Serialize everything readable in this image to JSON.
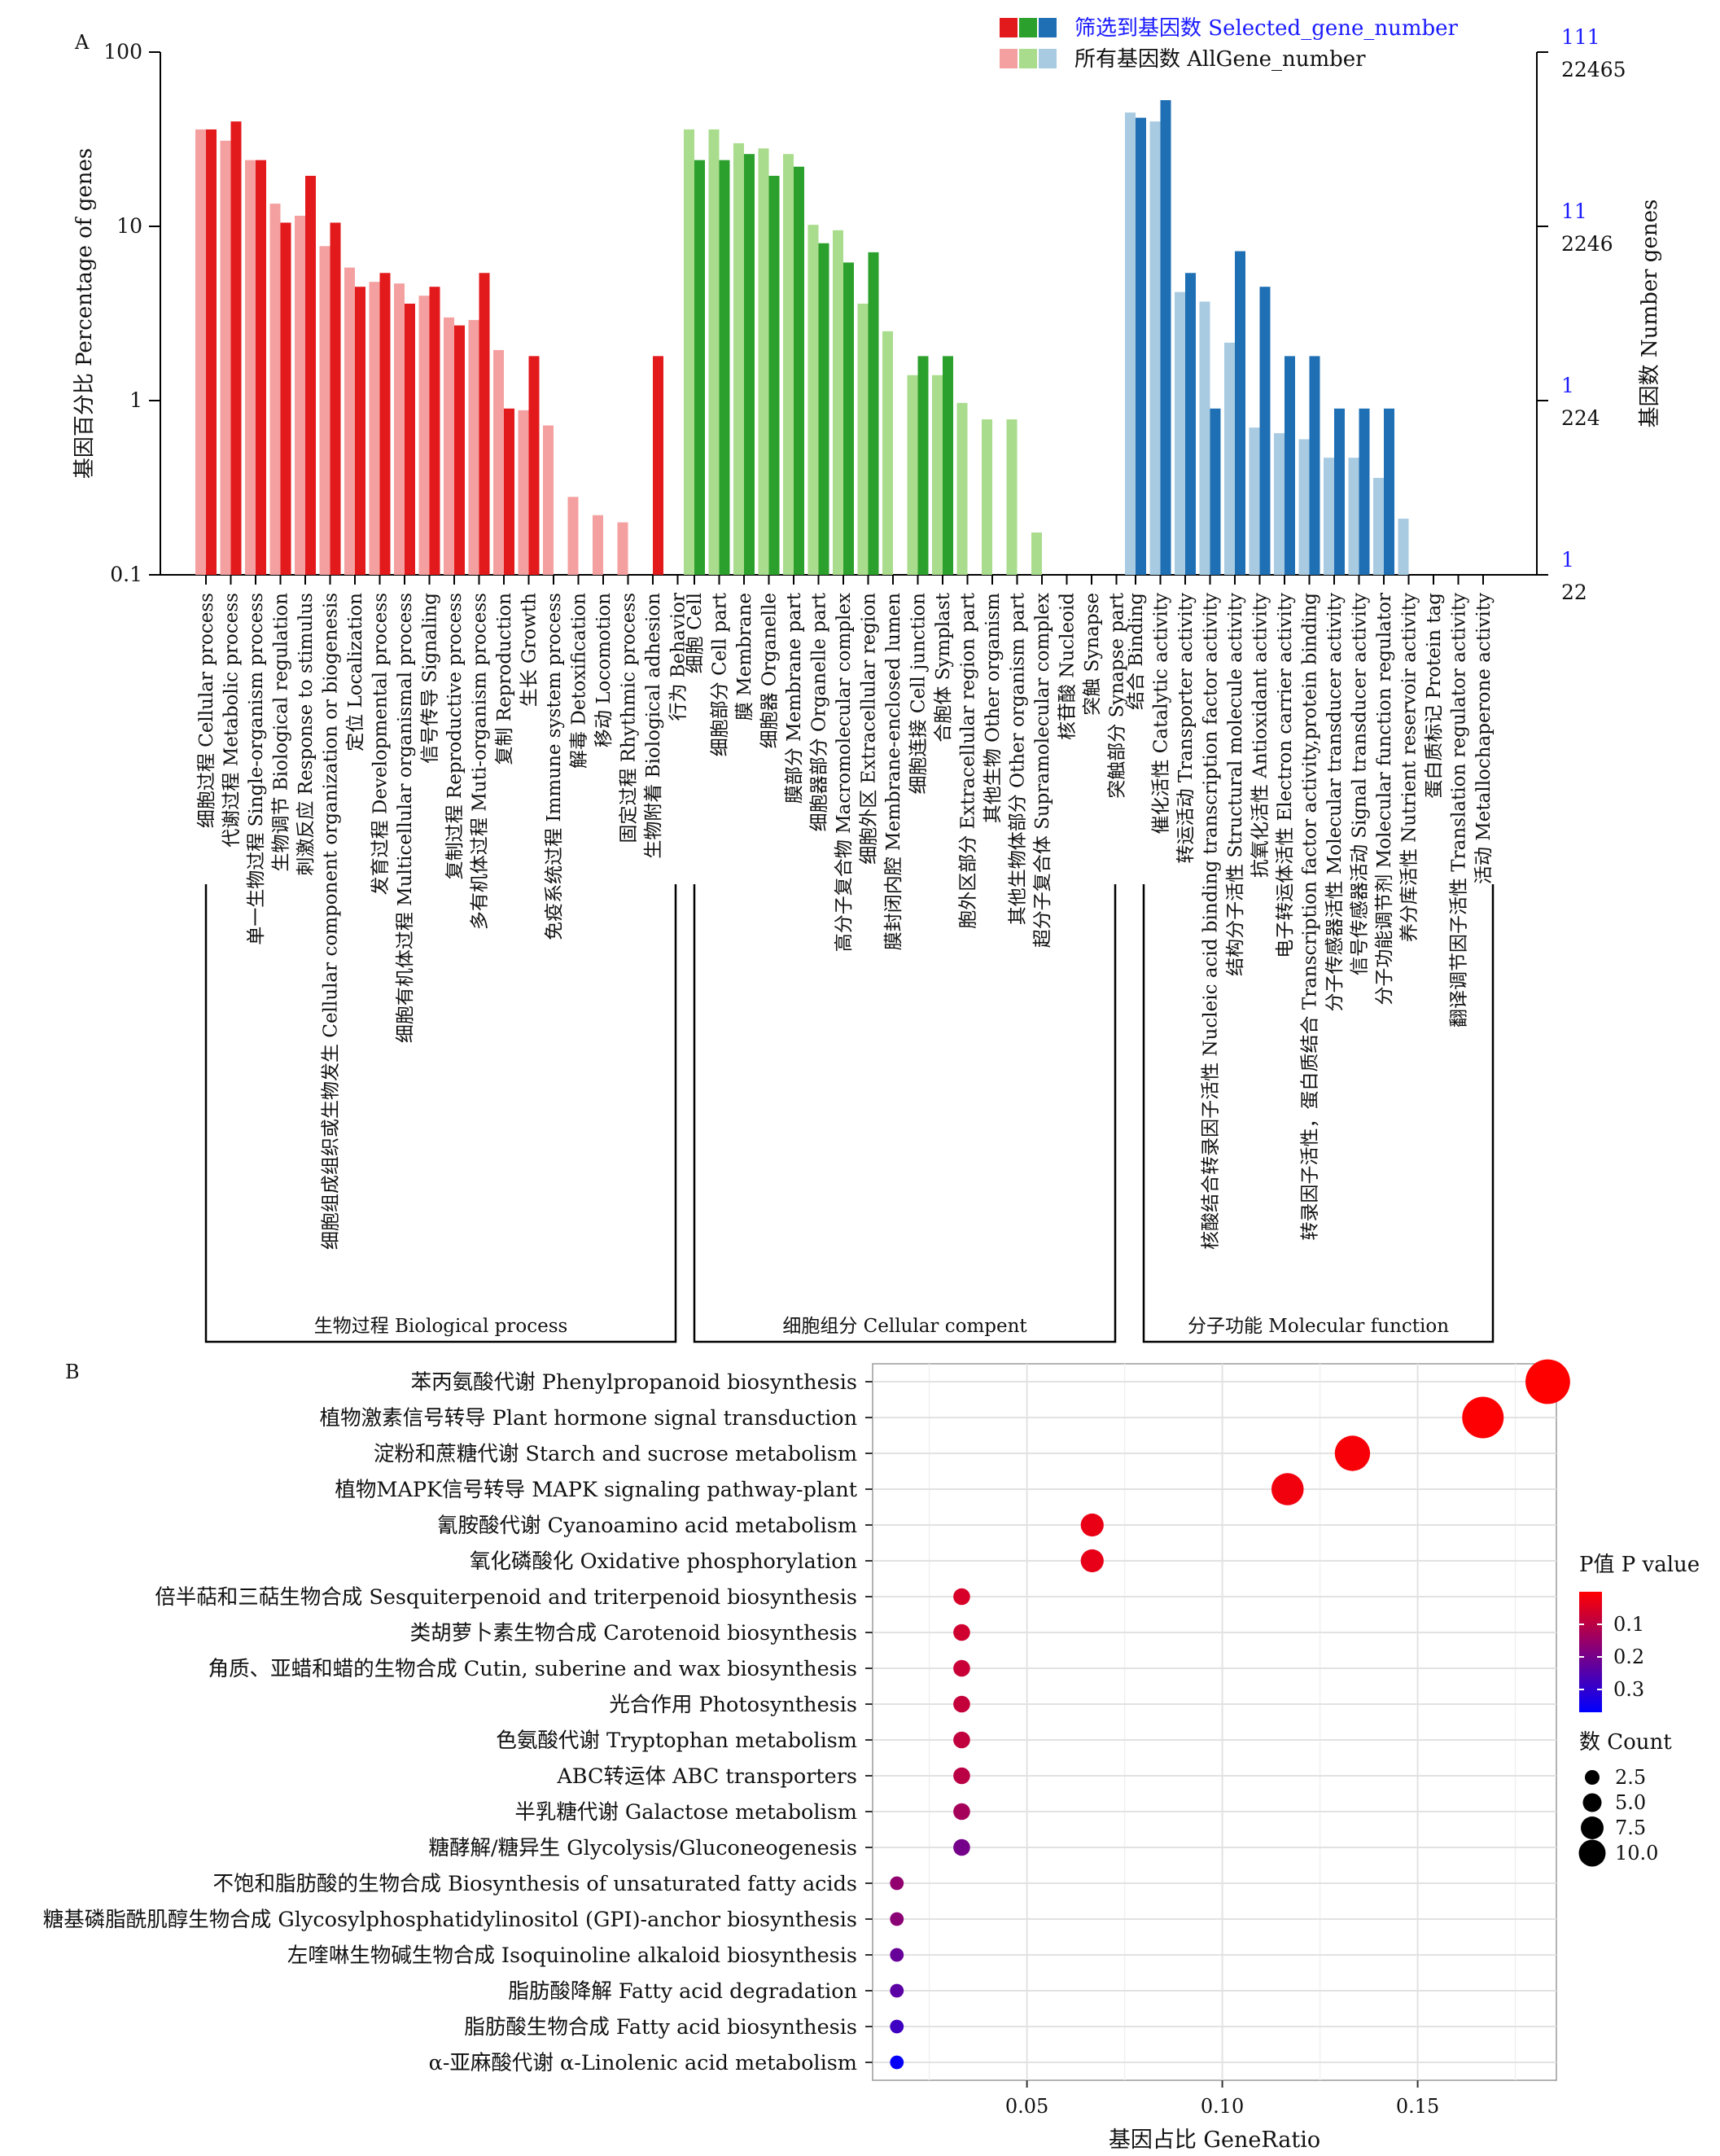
{
  "chart_data": [
    {
      "panel": "A",
      "type": "bar",
      "ylabel": "基因百分比 Percentage of genes",
      "y2label": "基因数 Number genes",
      "yscale": "log",
      "ylim": [
        0.1,
        100
      ],
      "yticks": [
        "100",
        "10",
        "1",
        "0.1"
      ],
      "y2ticks_selected": [
        "111",
        "11",
        "1",
        "1"
      ],
      "y2ticks_all": [
        "22465",
        "2246",
        "224",
        "22"
      ],
      "legend": [
        {
          "name": "筛选到基因数 Selected_gene_number",
          "colors": [
            "#e31a1c",
            "#2ca02c",
            "#1f6fb4"
          ]
        },
        {
          "name": "所有基因数 AllGene_number",
          "colors": [
            "#f4a0a0",
            "#a9dc8c",
            "#a8cbe2"
          ]
        }
      ],
      "groups": [
        {
          "name": "生物过程 Biological process",
          "all_color": "#f4a0a0",
          "sel_color": "#e31a1c",
          "categories": [
            "细胞过程 Cellular process",
            "代谢过程 Metabolic process",
            "单一生物过程 Single-organism process",
            "生物调节 Biological regulation",
            "刺激反应 Response to stimulus",
            "细胞组成组织或生物发生 Cellular component organization or biogenesis",
            "定位 Localization",
            "发育过程 Developmental process",
            "细胞有机体过程 Multicellular organismal process",
            "信号传导 Signaling",
            "复制过程 Reproductive process",
            "多有机体过程 Muti-organism process",
            "复制 Reproduction",
            "生长 Growth",
            "免疫系统过程 Immune system process",
            "解毒 Detoxification",
            "移动 Locomotion",
            "固定过程 Rhythmic process",
            "生物附着 Biological adhesion",
            "行为 Behavior"
          ],
          "all": [
            36,
            31,
            24,
            13.5,
            11.5,
            7.7,
            5.8,
            4.8,
            4.7,
            4,
            3,
            2.9,
            1.95,
            0.88,
            0.72,
            0.28,
            0.22,
            0.2,
            null,
            null
          ],
          "selected": [
            36,
            40,
            24,
            10.5,
            19.5,
            10.5,
            4.5,
            5.4,
            3.6,
            4.5,
            2.7,
            5.4,
            0.9,
            1.8,
            null,
            null,
            null,
            null,
            1.8,
            null
          ]
        },
        {
          "name": "细胞组分 Cellular compent",
          "all_color": "#a9dc8c",
          "sel_color": "#2ca02c",
          "categories": [
            "细胞 Cell",
            "细胞部分 Cell part",
            "膜 Membrane",
            "细胞器 Organelle",
            "膜部分 Membrane part",
            "细胞器部分 Organelle part",
            "高分子复合物 Macromolecular complex",
            "细胞外区 Extracellular region",
            "膜封闭内腔 Membrane-enclosed lumen",
            "细胞连接 Cell junction",
            "合胞体 Symplast",
            "胞外区部分 Extracellular region part",
            "其他生物 Other organism",
            "其他生物体部分 Other organism part",
            "超分子复合体 Supramolecular complex",
            "核苷酸 Nucleoid",
            "突触 Synapse",
            "突触部分 Synapse part"
          ],
          "selected": [
            24,
            24,
            26,
            19.5,
            22,
            8,
            6.2,
            7.1,
            null,
            1.8,
            1.8,
            null,
            null,
            null,
            null,
            null,
            null,
            null
          ],
          "all": [
            36,
            36,
            30,
            28,
            26,
            10.2,
            9.5,
            3.6,
            2.5,
            1.4,
            1.4,
            0.97,
            0.78,
            0.78,
            0.175,
            null,
            null,
            null
          ]
        },
        {
          "name": "分子功能 Molecular function",
          "all_color": "#a8cbe2",
          "sel_color": "#1f6fb4",
          "categories": [
            "结合 Binding",
            "催化活性 Catalytic activity",
            "转运活动 Transporter activity",
            "核酸结合转录因子活性 Nucleic acid binding transcription factor activity",
            "结构分子活性 Structural molecule activity",
            "抗氧化活性 Antioxidant activity",
            "电子转运体活性 Electron carrier activity",
            "转录因子活性，蛋白质结合 Transcription factor activity,protein binding",
            "分子传感器活性 Molecular transducer activity",
            "信号传感器活动 Signal transducer activity",
            "分子功能调节剂 Molecular function regulator",
            "养分库活性 Nutrient reservoir activity",
            "蛋白质标记 Protein tag",
            "翻译调节因子活性 Translation regulator activity",
            "活动 Metallochaperone activity"
          ],
          "all": [
            45,
            40,
            4.2,
            3.7,
            2.15,
            0.7,
            0.65,
            0.6,
            0.47,
            0.47,
            0.36,
            0.21,
            null,
            null,
            null
          ],
          "selected": [
            42,
            53,
            5.4,
            0.9,
            7.2,
            4.5,
            1.8,
            1.8,
            0.9,
            0.9,
            0.9,
            null,
            null,
            null,
            null
          ]
        }
      ]
    },
    {
      "panel": "B",
      "type": "scatter",
      "xlabel": "基因占比 GeneRatio",
      "xlim": [
        0.0105,
        0.1855
      ],
      "xticks": [
        0.05,
        0.1,
        0.15
      ],
      "xtick_labels": [
        "0.05",
        "0.10",
        "0.15"
      ],
      "size_legend_title": "数 Count",
      "size_legend": [
        "2.5",
        "5.0",
        "7.5",
        "10.0"
      ],
      "color_legend_title": "P值 P value",
      "color_legend_ticks": [
        "0.1",
        "0.2",
        "0.3"
      ],
      "color_scale": {
        "low": "#ff0000",
        "high": "#0000ff",
        "range": [
          0.0,
          0.37
        ]
      },
      "pathways": [
        {
          "name": "苯丙氨酸代谢 Phenylpropanoid biosynthesis",
          "ratio": 0.1833,
          "count": 11,
          "p": 0.0
        },
        {
          "name": "植物激素信号转导 Plant hormone signal transduction",
          "ratio": 0.1667,
          "count": 10,
          "p": 0.005
        },
        {
          "name": "淀粉和蔗糖代谢 Starch and sucrose metabolism",
          "ratio": 0.1333,
          "count": 8,
          "p": 0.01
        },
        {
          "name": "植物MAPK信号转导 MAPK signaling pathway-plant",
          "ratio": 0.1167,
          "count": 7,
          "p": 0.02
        },
        {
          "name": "氰胺酸代谢 Cyanoamino acid metabolism",
          "ratio": 0.0667,
          "count": 4,
          "p": 0.03
        },
        {
          "name": "氧化磷酸化 Oxidative phosphorylation",
          "ratio": 0.0667,
          "count": 4,
          "p": 0.035
        },
        {
          "name": "倍半萜和三萜生物合成 Sesquiterpenoid and triterpenoid biosynthesis",
          "ratio": 0.0333,
          "count": 2,
          "p": 0.06
        },
        {
          "name": "类胡萝卜素生物合成 Carotenoid biosynthesis",
          "ratio": 0.0333,
          "count": 2,
          "p": 0.07
        },
        {
          "name": "角质、亚蜡和蜡的生物合成 Cutin, suberine and wax biosynthesis",
          "ratio": 0.0333,
          "count": 2,
          "p": 0.08
        },
        {
          "name": "光合作用 Photosynthesis",
          "ratio": 0.0333,
          "count": 2,
          "p": 0.085
        },
        {
          "name": "色氨酸代谢 Tryptophan metabolism",
          "ratio": 0.0333,
          "count": 2,
          "p": 0.09
        },
        {
          "name": "ABC转运体 ABC transporters",
          "ratio": 0.0333,
          "count": 2,
          "p": 0.1
        },
        {
          "name": "半乳糖代谢 Galactose metabolism",
          "ratio": 0.0333,
          "count": 2,
          "p": 0.13
        },
        {
          "name": "糖酵解/糖异生 Glycolysis/Gluconeogenesis",
          "ratio": 0.0333,
          "count": 2,
          "p": 0.2
        },
        {
          "name": "不饱和脂肪酸的生物合成 Biosynthesis of unsaturated fatty acids",
          "ratio": 0.0167,
          "count": 1,
          "p": 0.16
        },
        {
          "name": "糖基磷脂酰肌醇生物合成 Glycosylphosphatidylinositol (GPI)-anchor biosynthesis",
          "ratio": 0.0167,
          "count": 1,
          "p": 0.17
        },
        {
          "name": "左喹啉生物碱生物合成 Isoquinoline alkaloid biosynthesis",
          "ratio": 0.0167,
          "count": 1,
          "p": 0.22
        },
        {
          "name": "脂肪酸降解 Fatty acid degradation",
          "ratio": 0.0167,
          "count": 1,
          "p": 0.24
        },
        {
          "name": "脂肪酸生物合成 Fatty acid biosynthesis",
          "ratio": 0.0167,
          "count": 1,
          "p": 0.28
        },
        {
          "name": "α-亚麻酸代谢 α-Linolenic acid metabolism",
          "ratio": 0.0167,
          "count": 1,
          "p": 0.36
        }
      ]
    }
  ]
}
